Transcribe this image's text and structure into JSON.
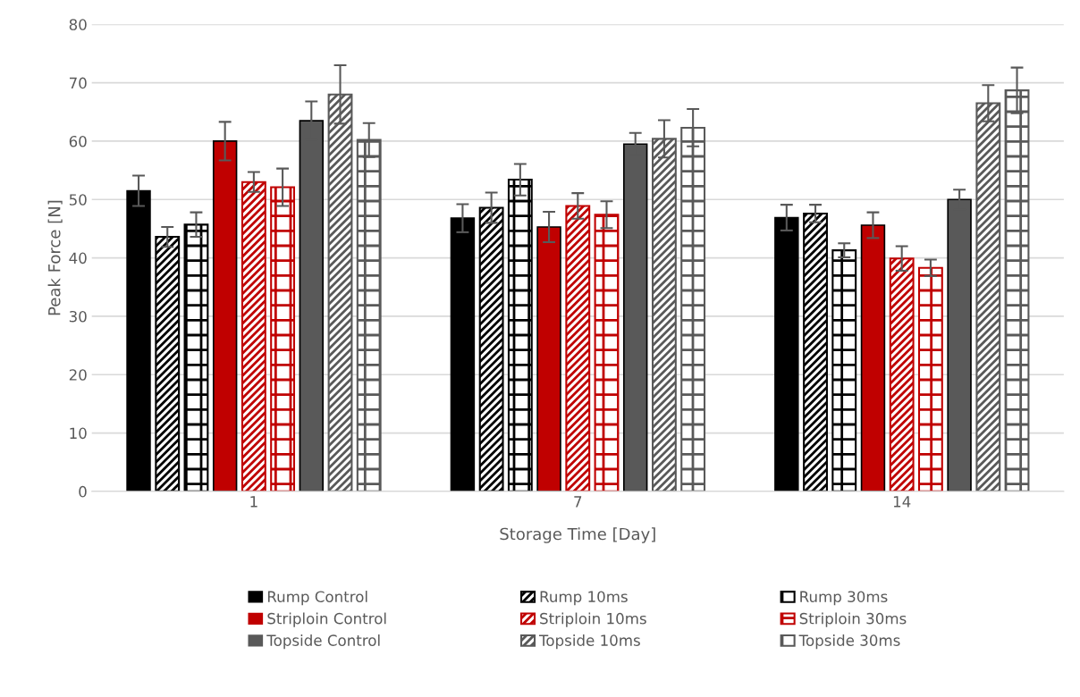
{
  "chart_data": {
    "type": "bar",
    "xlabel": "Storage Time [Day]",
    "ylabel": "Peak Force [N]",
    "categories": [
      "1",
      "7",
      "14"
    ],
    "ylim": [
      0,
      80
    ],
    "yticks": [
      0,
      10,
      20,
      30,
      40,
      50,
      60,
      70,
      80
    ],
    "grid": "y",
    "legend": "bottom",
    "series": [
      {
        "name": "Rump Control",
        "color": "#000000",
        "values": [
          51.5,
          46.8,
          46.9
        ],
        "errors": [
          2.6,
          2.4,
          2.2
        ]
      },
      {
        "name": "Rump 10ms",
        "color": "#000000",
        "values": [
          43.6,
          48.6,
          47.6
        ],
        "errors": [
          1.7,
          2.6,
          1.5
        ]
      },
      {
        "name": "Rump 30ms",
        "color": "#000000",
        "values": [
          45.7,
          53.4,
          41.3
        ],
        "errors": [
          2.1,
          2.7,
          1.2
        ]
      },
      {
        "name": "Striploin Control",
        "color": "#c00000",
        "values": [
          60.0,
          45.3,
          45.6
        ],
        "errors": [
          3.3,
          2.6,
          2.2
        ]
      },
      {
        "name": "Striploin 10ms",
        "color": "#c00000",
        "values": [
          53.0,
          48.9,
          39.9
        ],
        "errors": [
          1.7,
          2.2,
          2.1
        ]
      },
      {
        "name": "Striploin 30ms",
        "color": "#c00000",
        "values": [
          52.1,
          47.4,
          38.3
        ],
        "errors": [
          3.2,
          2.3,
          1.4
        ]
      },
      {
        "name": "Topside Control",
        "color": "#595959",
        "values": [
          63.5,
          59.5,
          50.0
        ],
        "errors": [
          3.3,
          1.9,
          1.7
        ]
      },
      {
        "name": "Topside 10ms",
        "color": "#595959",
        "values": [
          68.0,
          60.4,
          66.5
        ],
        "errors": [
          5.0,
          3.2,
          3.1
        ]
      },
      {
        "name": "Topside 30ms",
        "color": "#595959",
        "values": [
          60.2,
          62.3,
          68.7
        ],
        "errors": [
          2.9,
          3.2,
          3.9
        ]
      }
    ]
  }
}
